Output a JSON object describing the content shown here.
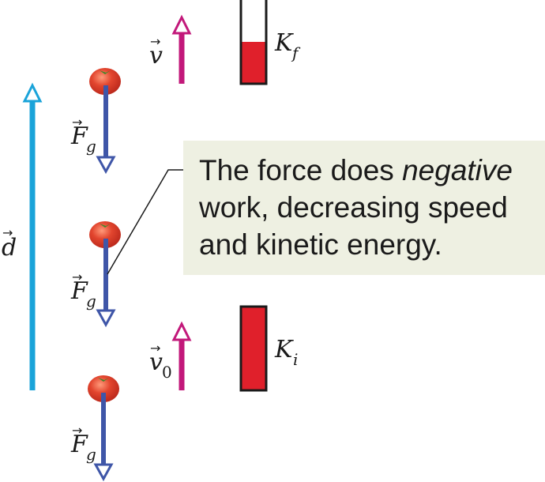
{
  "labels": {
    "displacement": "d",
    "velocity_final": "v",
    "velocity_initial": "v",
    "velocity_initial_sub": "0",
    "force": "F",
    "force_sub": "g",
    "kinetic_final": "K",
    "kinetic_final_sub": "f",
    "kinetic_initial": "K",
    "kinetic_initial_sub": "i"
  },
  "callout": {
    "line1_pre": "The force does ",
    "line1_em": "negative",
    "line2": "work, decreasing speed",
    "line3": "and kinetic energy."
  },
  "colors": {
    "displacement_arrow": "#1aa3d9",
    "velocity_arrow": "#c2187a",
    "force_arrow": "#3f56a8",
    "energy_bar": "#e0202b",
    "callout_bg": "#eef0e2",
    "tomato": "#e2452e"
  },
  "energy": {
    "final_fraction": 0.5,
    "initial_fraction": 1.0
  }
}
